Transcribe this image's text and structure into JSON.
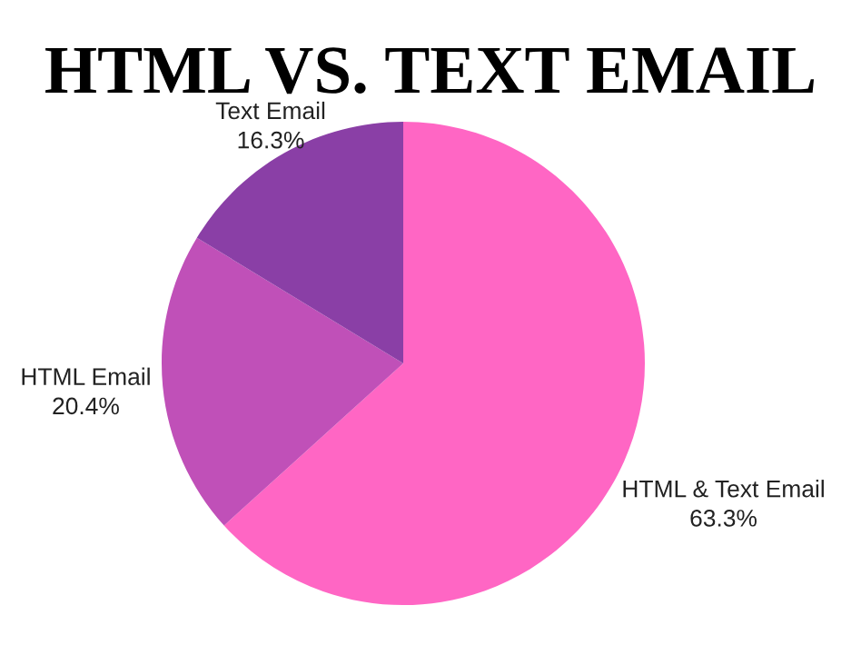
{
  "chart_data": {
    "type": "pie",
    "title": "HTML VS. TEXT EMAIL",
    "categories": [
      "HTML & Text Email",
      "HTML Email",
      "Text Email"
    ],
    "values": [
      63.3,
      20.4,
      16.3
    ],
    "value_labels": [
      "63.3%",
      "20.4%",
      "16.3%"
    ],
    "colors": [
      "#ff66c4",
      "#c050b8",
      "#8a3fa6"
    ],
    "legend": false
  }
}
